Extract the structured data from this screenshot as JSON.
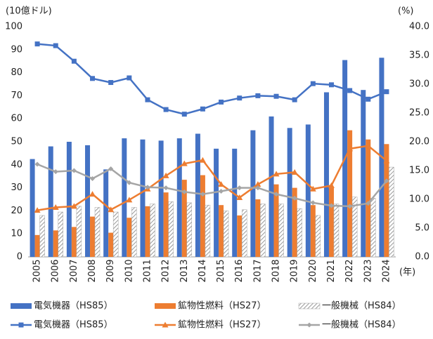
{
  "chart_data": {
    "type": "bar",
    "y_unit": "(10億ドル)",
    "y2_unit": "(%)",
    "x_unit": "(年)",
    "categories": [
      "2005",
      "2006",
      "2007",
      "2008",
      "2009",
      "2010",
      "2011",
      "2012",
      "2013",
      "2014",
      "2015",
      "2016",
      "2017",
      "2018",
      "2019",
      "2020",
      "2021",
      "2022",
      "2023",
      "2024"
    ],
    "ylim": [
      0,
      100
    ],
    "yticks": [
      0,
      10,
      20,
      30,
      40,
      50,
      60,
      70,
      80,
      90,
      100
    ],
    "y2lim": [
      0,
      40
    ],
    "y2ticks": [
      {
        "value": 0,
        "label": "0.0"
      },
      {
        "value": 5,
        "label": "5.0"
      },
      {
        "value": 10,
        "label": "10.0"
      },
      {
        "value": 15,
        "label": "15.0"
      },
      {
        "value": 20,
        "label": "20.0"
      },
      {
        "value": 25,
        "label": "25.0"
      },
      {
        "value": 30,
        "label": "30.0"
      },
      {
        "value": 35,
        "label": "35.0"
      },
      {
        "value": 40,
        "label": "40.0"
      }
    ],
    "series": [
      {
        "name": "電気機器（HS85）",
        "type": "bar",
        "color": "#4472c4",
        "values": [
          42.5,
          48,
          50,
          48.5,
          38,
          51.5,
          51,
          50.5,
          51.5,
          53.5,
          47,
          47,
          55,
          61,
          56,
          57.5,
          71.5,
          85.5,
          72.5,
          86.5
        ]
      },
      {
        "name": "鉱物性燃料（HS27）",
        "type": "bar",
        "color": "#ed7d31",
        "values": [
          9.5,
          11.5,
          13,
          17.5,
          10.5,
          17,
          22,
          28,
          33.5,
          35.5,
          22.5,
          18,
          25,
          31.5,
          30,
          22.5,
          30,
          55,
          51,
          49
        ]
      },
      {
        "name": "一般機械（HS84）",
        "type": "bar",
        "color": "#a5a5a5",
        "hatch": true,
        "values": [
          18,
          19.5,
          22,
          21.5,
          19.5,
          21.5,
          23,
          24,
          23.5,
          22.5,
          20,
          20.5,
          23,
          23,
          21,
          18,
          23,
          26,
          25.5,
          39
        ]
      },
      {
        "name": "電気機器（HS85）",
        "type": "line",
        "axis": "y2",
        "color": "#4472c4",
        "marker": "square",
        "values": [
          37,
          36.7,
          34,
          31,
          30.3,
          31.1,
          27.3,
          25.6,
          24.8,
          25.7,
          26.9,
          27.6,
          28,
          27.9,
          27.3,
          30.1,
          29.9,
          28.9,
          27.4,
          28.7
        ]
      },
      {
        "name": "鉱物性燃料（HS27）",
        "type": "line",
        "axis": "y2",
        "color": "#ed7d31",
        "marker": "triangle",
        "values": [
          8.1,
          8.6,
          8.8,
          10.9,
          8.2,
          9.9,
          11.8,
          14.1,
          16.2,
          16.8,
          12.6,
          10.3,
          12.6,
          14.4,
          14.7,
          11.8,
          12.4,
          18.8,
          19.3,
          16.7
        ]
      },
      {
        "name": "一般機械（HS84）",
        "type": "line",
        "axis": "y2",
        "color": "#a5a5a5",
        "marker": "diamond",
        "values": [
          16.1,
          14.8,
          15,
          13.6,
          15.3,
          12.9,
          12.1,
          12,
          11.3,
          10.9,
          11.4,
          12,
          12,
          10.9,
          10.2,
          9.4,
          8.9,
          8.8,
          9.3,
          13.2
        ]
      }
    ]
  }
}
